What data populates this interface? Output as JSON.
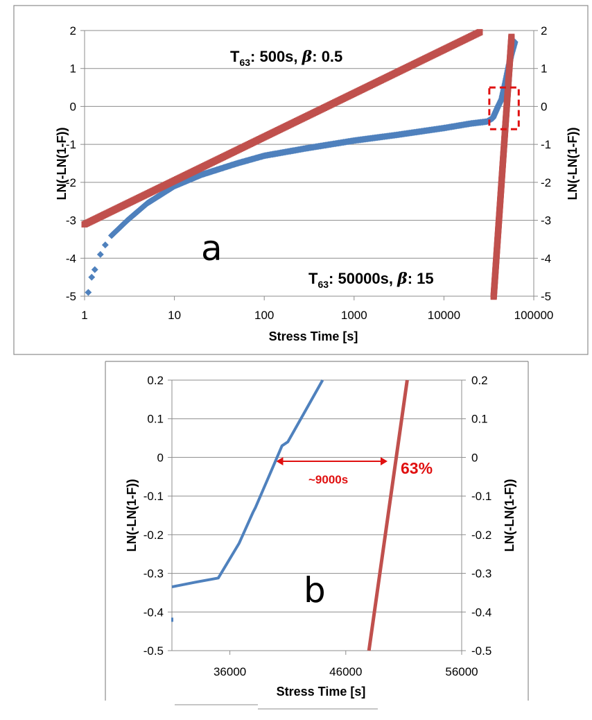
{
  "colors": {
    "blue": "#4f81bd",
    "red": "#c0504d",
    "annotation": "#e01010"
  },
  "chart_data": [
    {
      "type": "scatter",
      "panel_label": "a",
      "xlabel": "Stress Time [s]",
      "ylabel": "LN(-LN(1-F))",
      "ylabel_right": "LN(-LN(1-F))",
      "x_scale": "log",
      "xlim": [
        1,
        100000
      ],
      "ylim": [
        -5,
        2
      ],
      "x_ticks": [
        "1",
        "10",
        "100",
        "1000",
        "10000",
        "100000"
      ],
      "y_ticks": [
        "2",
        "1",
        "0",
        "-1",
        "-2",
        "-3",
        "-4",
        "-5"
      ],
      "grid": "horizontal",
      "annotations": {
        "fit1": {
          "prefix": "T",
          "sub": "63",
          "value": ": 500s, ",
          "beta": "β",
          "beta_value": ": 0.5"
        },
        "fit2": {
          "prefix": "T",
          "sub": "63",
          "value": ": 50000s, ",
          "beta": "β",
          "beta_value": ": 15"
        }
      },
      "series": [
        {
          "kind": "weibull-fit",
          "color": "red",
          "t63": 500,
          "beta": 0.5,
          "x_range": [
            1,
            25000
          ]
        },
        {
          "kind": "weibull-fit",
          "color": "red",
          "t63": 50000,
          "beta": 15,
          "x_range": [
            35000,
            56500
          ]
        },
        {
          "kind": "measured",
          "color": "blue",
          "points": [
            [
              1.1,
              -4.9
            ],
            [
              1.2,
              -4.5
            ],
            [
              1.3,
              -4.3
            ],
            [
              1.5,
              -3.9
            ],
            [
              1.7,
              -3.65
            ],
            [
              2,
              -3.4
            ],
            [
              3,
              -3.0
            ],
            [
              5,
              -2.55
            ],
            [
              10,
              -2.1
            ],
            [
              20,
              -1.8
            ],
            [
              50,
              -1.5
            ],
            [
              100,
              -1.3
            ],
            [
              300,
              -1.1
            ],
            [
              1000,
              -0.9
            ],
            [
              3000,
              -0.75
            ],
            [
              10000,
              -0.57
            ],
            [
              20000,
              -0.45
            ],
            [
              30000,
              -0.4
            ],
            [
              35000,
              -0.31
            ],
            [
              40000,
              0.0
            ],
            [
              44000,
              0.2
            ],
            [
              48000,
              0.6
            ],
            [
              52000,
              1.0
            ],
            [
              56000,
              1.35
            ],
            [
              60000,
              1.6
            ],
            [
              62000,
              1.72
            ]
          ]
        }
      ],
      "highlight_box": {
        "x": [
          32000,
          68000
        ],
        "y": [
          -0.6,
          0.5
        ]
      }
    },
    {
      "type": "line",
      "panel_label": "b",
      "xlabel": "Stress Time [s]",
      "ylabel": "LN(-LN(1-F))",
      "ylabel_right": "LN(-LN(1-F))",
      "xlim": [
        31000,
        56000
      ],
      "ylim": [
        -0.5,
        0.2
      ],
      "x_ticks": [
        "36000",
        "46000",
        "56000"
      ],
      "y_ticks": [
        "0.2",
        "0.1",
        "0",
        "-0.1",
        "-0.2",
        "-0.3",
        "-0.4",
        "-0.5"
      ],
      "grid": "horizontal",
      "series": [
        {
          "color": "blue",
          "points": [
            [
              31000,
              -0.335
            ],
            [
              33000,
              -0.323
            ],
            [
              35000,
              -0.312
            ],
            [
              36800,
              -0.222
            ],
            [
              38000,
              -0.142
            ],
            [
              38200,
              -0.13
            ],
            [
              39500,
              -0.04
            ],
            [
              40500,
              0.03
            ],
            [
              41000,
              0.04
            ],
            [
              42500,
              0.12
            ],
            [
              44000,
              0.2
            ]
          ]
        },
        {
          "color": "red",
          "points": [
            [
              48000,
              -0.5
            ],
            [
              51300,
              0.2
            ]
          ]
        }
      ],
      "annotations": {
        "gap_label": "~9000s",
        "percent_label": "63%"
      },
      "gap_arrow": {
        "from": 40000,
        "to": 49600,
        "y": -0.01
      }
    }
  ]
}
